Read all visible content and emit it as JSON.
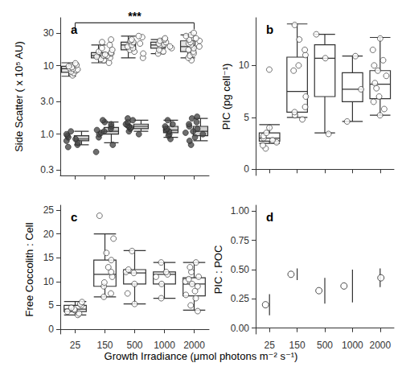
{
  "xlabel": "Growth Irradiance (μmol photons m⁻² s⁻¹)",
  "chart_data": [
    {
      "type": "boxplot",
      "title": "a",
      "ylabel": "Side Scatter ( x 10⁵ AU)",
      "categories": [
        "25",
        "150",
        "500",
        "1000",
        "2000"
      ],
      "tick_labels": "y",
      "log": "y",
      "ylim": [
        0.25,
        50
      ],
      "yticks": [
        0.3,
        {
          "value": 1,
          "label": "1.0"
        },
        {
          "value": 3,
          "label": "3.0"
        },
        10,
        30
      ],
      "annotations": [
        {
          "text": "***",
          "from": "25",
          "to": "2000",
          "y": 42
        }
      ],
      "series": [
        {
          "color": "#ffffff",
          "marker": "circle",
          "boxes": [
            [
              7,
              8,
              9,
              9.8,
              11
            ],
            [
              11,
              13,
              14,
              15.5,
              20
            ],
            [
              13,
              17,
              20,
              22,
              27
            ],
            [
              15,
              18,
              20,
              22,
              24
            ],
            [
              13,
              16,
              19,
              23,
              28
            ]
          ],
          "points": [
            [
              7.2,
              7.8,
              8.2,
              8.5,
              8.8,
              9,
              9.2,
              9.5,
              9.8,
              10.2,
              10.8
            ],
            [
              11,
              12,
              12.5,
              13,
              13.5,
              14,
              14,
              14.5,
              15,
              15.5,
              16,
              17,
              18,
              20,
              22,
              24
            ],
            [
              13,
              15,
              16,
              17,
              18,
              19,
              20,
              21,
              22,
              23,
              24,
              26,
              27
            ],
            [
              15,
              16,
              17,
              18,
              19,
              20,
              20.5,
              21,
              22,
              23,
              24,
              25
            ],
            [
              12,
              13,
              14,
              15,
              16,
              17,
              18,
              19,
              20,
              21,
              22,
              23,
              24,
              25,
              27,
              28,
              30
            ]
          ]
        },
        {
          "color": "#4a4a4a",
          "marker": "circle",
          "boxes": [
            [
              0.7,
              0.8,
              0.85,
              0.95,
              1.1
            ],
            [
              0.75,
              1.0,
              1.1,
              1.25,
              1.5
            ],
            [
              1.1,
              1.2,
              1.3,
              1.4,
              1.6
            ],
            [
              0.9,
              1.05,
              1.15,
              1.3,
              1.6
            ],
            [
              0.8,
              0.95,
              1.1,
              1.3,
              1.7
            ]
          ],
          "points": [
            [
              0.65,
              0.7,
              0.75,
              0.8,
              0.85,
              0.9,
              0.95,
              1.0,
              1.1
            ],
            [
              0.55,
              0.7,
              0.9,
              1.0,
              1.05,
              1.1,
              1.15,
              1.2,
              1.3,
              1.4,
              1.5,
              1.6
            ],
            [
              1.0,
              1.1,
              1.2,
              1.25,
              1.3,
              1.35,
              1.4,
              1.5,
              1.6,
              1.7
            ],
            [
              0.85,
              0.95,
              1.0,
              1.1,
              1.15,
              1.2,
              1.3,
              1.4,
              1.6
            ],
            [
              0.7,
              0.8,
              0.9,
              1.0,
              1.05,
              1.1,
              1.2,
              1.3,
              1.4,
              1.5,
              1.7,
              1.8
            ]
          ]
        }
      ]
    },
    {
      "type": "boxplot",
      "title": "b",
      "ylabel": "PIC (pg cell⁻¹)",
      "categories": [
        "25",
        "150",
        "500",
        "1000",
        "2000"
      ],
      "tick_labels": "y",
      "ylim": [
        -0.6,
        14.6
      ],
      "yticks": [
        0,
        5,
        10
      ],
      "series": [
        {
          "color": "#ffffff",
          "marker": "circle",
          "boxes": [
            [
              2.5,
              2.7,
              3.0,
              3.5,
              4.3
            ],
            [
              5.0,
              5.5,
              7.5,
              10.8,
              14
            ],
            [
              3.5,
              7.0,
              10.7,
              12.0,
              13.0
            ],
            [
              4.6,
              6.5,
              7.7,
              9.3,
              10.9
            ],
            [
              5.2,
              6.8,
              8.2,
              9.5,
              12.7
            ]
          ],
          "points": [
            [
              2.0,
              2.3,
              2.6,
              2.8,
              3.0,
              3.2,
              3.5,
              4.0,
              9.6
            ],
            [
              4.8,
              5.2,
              5.5,
              6.0,
              7.0,
              9.5,
              10.0,
              11.0,
              11.5,
              12.5,
              13.9
            ],
            [
              3.4,
              10.7,
              13.0
            ],
            [
              4.6,
              7.7,
              10.9
            ],
            [
              5.2,
              5.8,
              6.5,
              7.0,
              7.8,
              8.3,
              9.0,
              9.5,
              10.0,
              10.5,
              11.5,
              12.6
            ]
          ]
        }
      ]
    },
    {
      "type": "boxplot",
      "title": "c",
      "ylabel": "Free Coccolith : Cell",
      "categories": [
        "25",
        "150",
        "500",
        "1000",
        "2000"
      ],
      "ylim": [
        -1,
        26
      ],
      "yticks": [
        0,
        5,
        10,
        15,
        20,
        25
      ],
      "series": [
        {
          "color": "#ffffff",
          "marker": "circle",
          "boxes": [
            [
              3.0,
              3.7,
              4.2,
              5.0,
              5.8
            ],
            [
              6.8,
              9.0,
              11.5,
              14.5,
              20
            ],
            [
              5.3,
              9.5,
              11.8,
              12.5,
              16.5
            ],
            [
              6.5,
              9.5,
              11.5,
              12.0,
              14.0
            ],
            [
              4.0,
              7.0,
              9.5,
              10.8,
              14.0
            ]
          ],
          "points": [
            [
              3.0,
              3.3,
              3.7,
              4.0,
              4.2,
              4.5,
              5.0,
              5.3,
              5.7
            ],
            [
              6.8,
              7.5,
              9.0,
              9.8,
              11,
              12,
              13,
              14.5,
              16,
              19,
              23.8
            ],
            [
              5.3,
              7.5,
              9.5,
              11.8,
              12,
              12.5,
              16.4
            ],
            [
              6.5,
              9.5,
              11,
              11.5,
              12,
              14
            ],
            [
              3.8,
              5,
              6.5,
              7.2,
              8,
              9,
              9.5,
              10,
              10.5,
              11,
              12,
              13,
              14
            ]
          ]
        }
      ]
    },
    {
      "type": "scatter",
      "title": "d",
      "ylabel": "PIC : POC",
      "categories": [
        "25",
        "150",
        "500",
        "1000",
        "2000"
      ],
      "ylim": [
        -0.05,
        1.05
      ],
      "yticks": [
        {
          "value": 0,
          "label": "0.00"
        },
        0.25,
        {
          "value": 0.5,
          "label": "0.50"
        },
        0.75,
        {
          "value": 1,
          "label": "1.00"
        }
      ],
      "color": "#ffffff",
      "marker": "circle",
      "values": [
        0.2,
        0.46,
        0.32,
        0.36,
        0.43
      ],
      "errors": [
        0.09,
        0.05,
        0.11,
        0.14,
        0.08
      ]
    }
  ]
}
